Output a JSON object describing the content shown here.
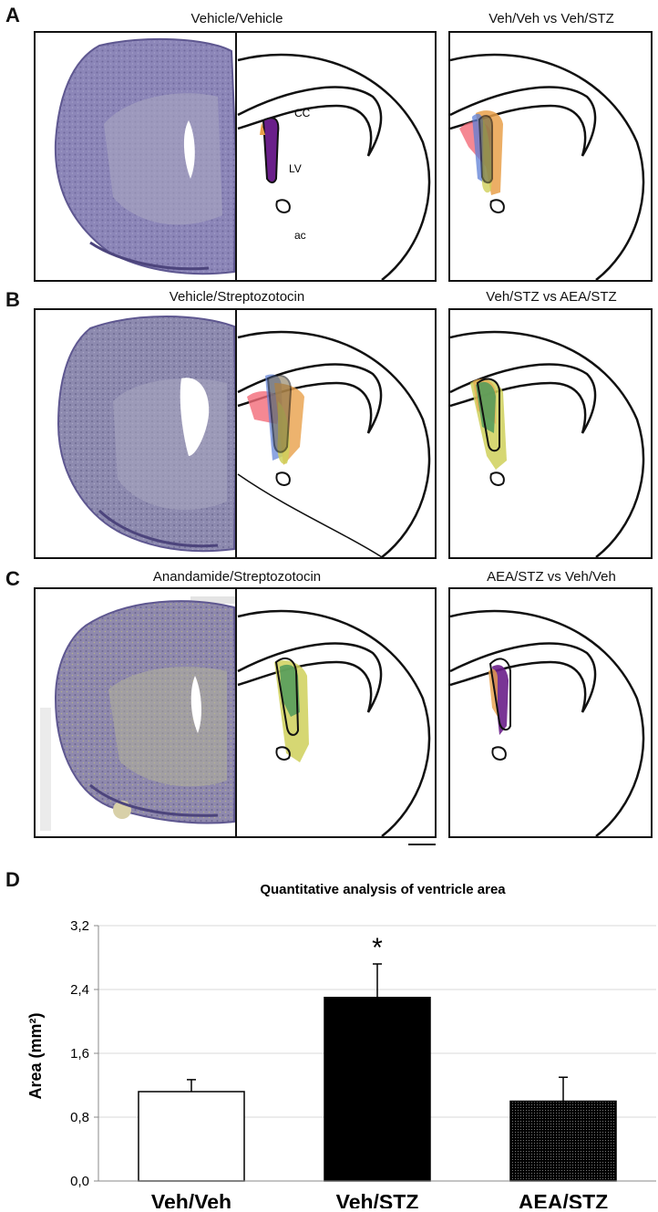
{
  "panels": {
    "A": {
      "letter": "A",
      "left_title": "Vehicle/Vehicle",
      "right_title": "Veh/Veh vs Veh/STZ",
      "labels": {
        "cc": "CC",
        "lv": "LV",
        "ac": "ac"
      }
    },
    "B": {
      "letter": "B",
      "left_title": "Vehicle/Streptozotocin",
      "right_title": "Veh/STZ vs AEA/STZ"
    },
    "C": {
      "letter": "C",
      "left_title": "Anandamide/Streptozotocin",
      "right_title": "AEA/STZ vs Veh/Veh"
    },
    "D": {
      "letter": "D"
    }
  },
  "colors": {
    "tissue": "#8b84b6",
    "tissue_dark": "#5e5790",
    "purple": "#6a1f8a",
    "red": "#f26a78",
    "blue": "#5d7fd6",
    "orange": "#e9a04a",
    "green": "#4f9a5a",
    "yellow": "#cfd05a"
  },
  "chart_data": {
    "type": "bar",
    "title": "Quantitative analysis of ventricle area",
    "ylabel": "Area (mm²)",
    "xlabel": "",
    "categories": [
      "Veh/Veh",
      "Veh/STZ",
      "AEA/STZ"
    ],
    "values": [
      1.12,
      2.3,
      1.0
    ],
    "errors": [
      0.15,
      0.42,
      0.3
    ],
    "bar_fills": [
      "#ffffff",
      "#000000",
      "dotted-black"
    ],
    "ylim": [
      0,
      3.2
    ],
    "yticks": [
      "0,0",
      "0,8",
      "1,6",
      "2,4",
      "3,2"
    ],
    "ytick_values": [
      0,
      0.8,
      1.6,
      2.4,
      3.2
    ],
    "annotation": "*"
  }
}
